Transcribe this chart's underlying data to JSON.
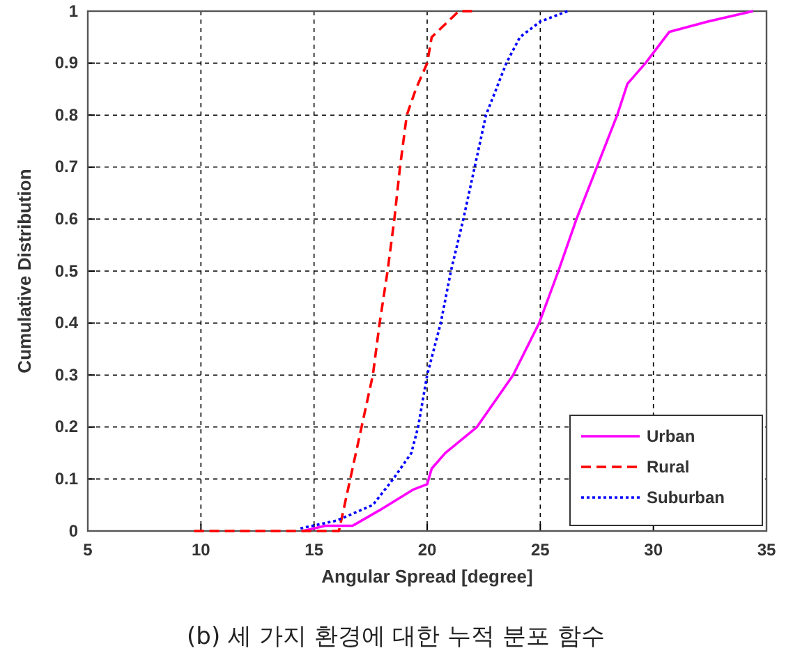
{
  "chart_data": {
    "type": "line",
    "title": "(b) 세 가지 환경에 대한 누적 분포 함수",
    "xlabel": "Angular Spread [degree]",
    "ylabel": "Cumulative Distribution",
    "xlim": [
      5,
      35
    ],
    "xticks": [
      5,
      10,
      15,
      20,
      25,
      30,
      35
    ],
    "ylim": [
      0,
      1
    ],
    "yticks": [
      0,
      0.1,
      0.2,
      0.3,
      0.4,
      0.5,
      0.6,
      0.7,
      0.8,
      0.9,
      1
    ],
    "grid": true,
    "legend": "bottom right",
    "series": [
      {
        "name": "Urban",
        "color": "#ff00ff",
        "line_style": "solid",
        "x": [
          14.5,
          15.5,
          16.7,
          17.9,
          19.4,
          20,
          20.2,
          20.8,
          22.2,
          23,
          23.8,
          24.95,
          25.8,
          26.6,
          27.5,
          28.4,
          28.85,
          29.65,
          30.7,
          32.4,
          34.4
        ],
        "values": [
          0,
          0.01,
          0.01,
          0.04,
          0.08,
          0.09,
          0.12,
          0.15,
          0.2,
          0.25,
          0.3,
          0.4,
          0.5,
          0.6,
          0.7,
          0.8,
          0.86,
          0.9,
          0.96,
          0.98,
          1
        ]
      },
      {
        "name": "Rural",
        "color": "#ff0000",
        "line_style": "dashed",
        "x": [
          9.7,
          16.1,
          16.6,
          17.1,
          17.6,
          17.9,
          18.25,
          18.55,
          18.8,
          19.1,
          19.5,
          20,
          20.2,
          21.4,
          22.2
        ],
        "values": [
          0,
          0,
          0.1,
          0.2,
          0.3,
          0.4,
          0.5,
          0.6,
          0.7,
          0.8,
          0.85,
          0.9,
          0.95,
          1,
          1
        ]
      },
      {
        "name": "Suburban",
        "color": "#0000ff",
        "line_style": "dotted",
        "x": [
          14.4,
          16,
          17.6,
          18.5,
          19.3,
          19.6,
          20,
          20.6,
          21.05,
          21.6,
          22.1,
          22.6,
          23.5,
          24.1,
          25,
          26.2
        ],
        "values": [
          0.005,
          0.02,
          0.05,
          0.1,
          0.15,
          0.2,
          0.3,
          0.4,
          0.5,
          0.6,
          0.7,
          0.8,
          0.9,
          0.95,
          0.98,
          1
        ]
      }
    ]
  }
}
